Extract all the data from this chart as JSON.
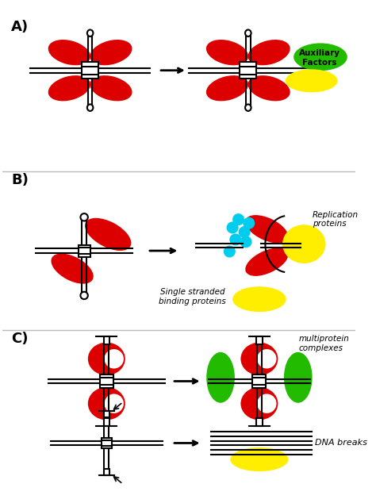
{
  "bg_color": "#ffffff",
  "red": "#dd0000",
  "green": "#22bb00",
  "yellow": "#ffee00",
  "cyan": "#00ccee",
  "black": "#000000",
  "label_A": "A)",
  "label_B": "B)",
  "label_C": "C)",
  "aux_text": "Auxiliary\nFactors",
  "rep_text": "Replication\nproteins",
  "ssb_text": "Single stranded\nbinding proteins",
  "multi_text": "multiprotein\ncomplexes",
  "dna_text": "DNA breaks",
  "figw": 4.74,
  "figh": 6.34,
  "dpi": 100
}
